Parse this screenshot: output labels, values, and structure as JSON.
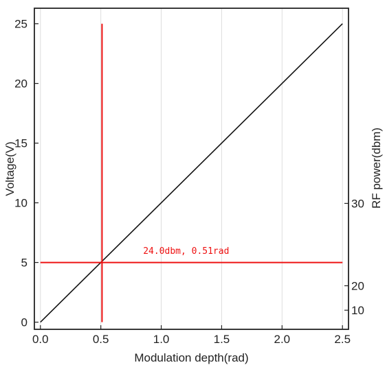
{
  "chart_data": {
    "type": "line",
    "xlabel": "Modulation depth(rad)",
    "ylabel": "Voltage(V)",
    "y2label": "RF power(dbm)",
    "xlim": [
      -0.05,
      2.55
    ],
    "ylim": [
      -0.6,
      26.3
    ],
    "xticks": [
      0.0,
      0.5,
      1.0,
      1.5,
      2.0,
      2.5
    ],
    "xtick_labels": [
      "0.0",
      "0.5",
      "1.0",
      "1.5",
      "2.0",
      "2.5"
    ],
    "yticks": [
      0,
      5,
      10,
      15,
      20,
      25
    ],
    "ytick_labels": [
      "0",
      "5",
      "10",
      "15",
      "20",
      "25"
    ],
    "y2ticks": [
      {
        "label": "10",
        "at_voltage": 1.0
      },
      {
        "label": "20",
        "at_voltage": 3.05
      },
      {
        "label": "30",
        "at_voltage": 9.95
      }
    ],
    "grid": "vertical",
    "series": [
      {
        "x": [
          0.0,
          2.5
        ],
        "y": [
          0,
          25
        ],
        "color": "#111111"
      }
    ],
    "markers": {
      "vertical": {
        "x": 0.51,
        "y_from": 0,
        "y_to": 25,
        "color": "#ee1111"
      },
      "horizontal": {
        "y": 5.0,
        "x_from": 0.0,
        "x_to": 2.5,
        "color": "#ee1111"
      }
    },
    "annotation": {
      "text": "24.0dbm, 0.51rad",
      "x": 0.85,
      "y": 6.0,
      "color": "#ee1111"
    }
  }
}
